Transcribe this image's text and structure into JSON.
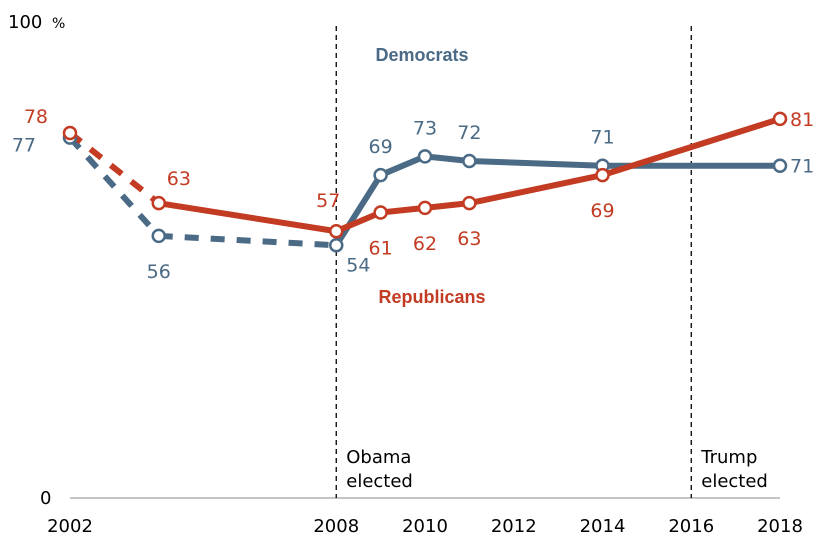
{
  "chart_data": {
    "type": "line",
    "x_ticks": [
      "2002",
      "2008",
      "2010",
      "2012",
      "2014",
      "2016",
      "2018"
    ],
    "y_top_label": "100",
    "y_unit": "%",
    "y_bottom_label": "0",
    "ylim": [
      0,
      100
    ],
    "xlim": [
      2002,
      2018
    ],
    "series": [
      {
        "name": "Democrats",
        "color": "#4a6a85",
        "points": [
          {
            "x": 2002,
            "y": 77,
            "label": "77"
          },
          {
            "x": 2004,
            "y": 56,
            "label": "56"
          },
          {
            "x": 2008,
            "y": 54,
            "label": "54"
          },
          {
            "x": 2009,
            "y": 69,
            "label": "69"
          },
          {
            "x": 2010,
            "y": 73,
            "label": "73"
          },
          {
            "x": 2011,
            "y": 72,
            "label": "72"
          },
          {
            "x": 2014,
            "y": 71,
            "label": "71"
          },
          {
            "x": 2018,
            "y": 71,
            "label": "71"
          }
        ],
        "dashed_until": 2008
      },
      {
        "name": "Republicans",
        "color": "#c23b22",
        "points": [
          {
            "x": 2002,
            "y": 78,
            "label": "78"
          },
          {
            "x": 2004,
            "y": 63,
            "label": "63"
          },
          {
            "x": 2008,
            "y": 57,
            "label": "57"
          },
          {
            "x": 2009,
            "y": 61,
            "label": "61"
          },
          {
            "x": 2010,
            "y": 62,
            "label": "62"
          },
          {
            "x": 2011,
            "y": 63,
            "label": "63"
          },
          {
            "x": 2014,
            "y": 69,
            "label": "69"
          },
          {
            "x": 2018,
            "y": 81,
            "label": "81"
          }
        ],
        "dashed_until": 2004
      }
    ],
    "annotations": [
      {
        "x": 2008,
        "lines": [
          "Obama",
          "elected"
        ]
      },
      {
        "x": 2016,
        "lines": [
          "Trump",
          "elected"
        ]
      }
    ],
    "grid": false
  }
}
